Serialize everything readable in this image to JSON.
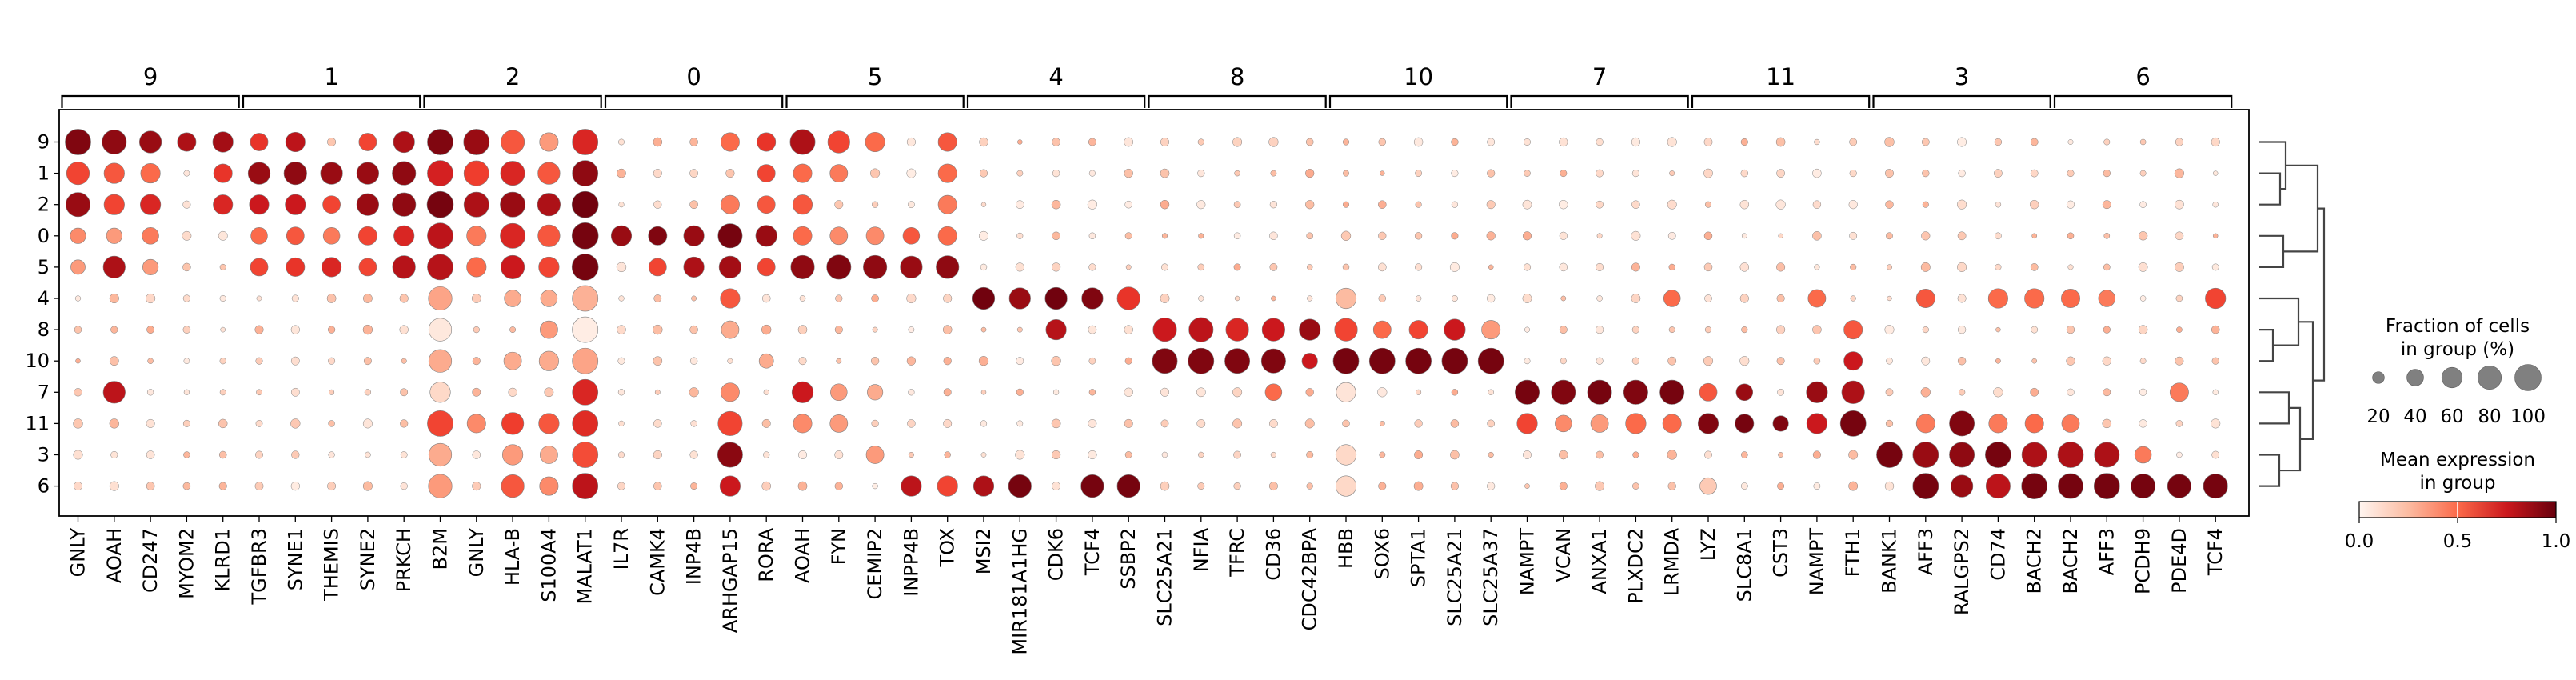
{
  "chart_data": {
    "type": "dotplot",
    "groups": [
      "9",
      "1",
      "2",
      "0",
      "5",
      "4",
      "8",
      "10",
      "7",
      "11",
      "3",
      "6"
    ],
    "gene_groups": [
      {
        "label": "9",
        "genes": [
          "GNLY",
          "AOAH",
          "CD247",
          "MYOM2",
          "KLRD1"
        ]
      },
      {
        "label": "1",
        "genes": [
          "TGFBR3",
          "SYNE1",
          "THEMIS",
          "SYNE2",
          "PRKCH"
        ]
      },
      {
        "label": "2",
        "genes": [
          "B2M",
          "GNLY",
          "HLA-B",
          "S100A4",
          "MALAT1"
        ]
      },
      {
        "label": "0",
        "genes": [
          "IL7R",
          "CAMK4",
          "INP4B",
          "ARHGAP15",
          "RORA"
        ]
      },
      {
        "label": "5",
        "genes": [
          "AOAH",
          "FYN",
          "CEMIP2",
          "INPP4B",
          "TOX"
        ]
      },
      {
        "label": "4",
        "genes": [
          "MSI2",
          "MIR181A1HG",
          "CDK6",
          "TCF4",
          "SSBP2"
        ]
      },
      {
        "label": "8",
        "genes": [
          "SLC25A21",
          "NFIA",
          "TFRC",
          "CD36",
          "CDC42BPA"
        ]
      },
      {
        "label": "10",
        "genes": [
          "HBB",
          "SOX6",
          "SPTA1",
          "SLC25A21",
          "SLC25A37"
        ]
      },
      {
        "label": "7",
        "genes": [
          "NAMPT",
          "VCAN",
          "ANXA1",
          "PLXDC2",
          "LRMDA"
        ]
      },
      {
        "label": "11",
        "genes": [
          "LYZ",
          "SLC8A1",
          "CST3",
          "NAMPT",
          "FTH1"
        ]
      },
      {
        "label": "3",
        "genes": [
          "BANK1",
          "AFF3",
          "RALGPS2",
          "CD74",
          "BACH2"
        ]
      },
      {
        "label": "6",
        "genes": [
          "BACH2",
          "AFF3",
          "PCDH9",
          "PDE4D",
          "TCF4"
        ]
      }
    ],
    "colorbar": {
      "title": "Mean expression in group",
      "ticks": [
        "0.0",
        "0.5",
        "1.0"
      ],
      "range": [
        0,
        1
      ]
    },
    "size_legend": {
      "title": "Fraction of cells in group (%)",
      "values": [
        20,
        40,
        60,
        80,
        100
      ]
    }
  },
  "legend": {
    "size_title_1": "Fraction of cells",
    "size_title_2": "in group (%)",
    "size_labels": [
      "20",
      "40",
      "60",
      "80",
      "100"
    ],
    "color_title_1": "Mean expression",
    "color_title_2": "in group",
    "color_ticks": [
      "0.0",
      "0.5",
      "1.0"
    ]
  }
}
